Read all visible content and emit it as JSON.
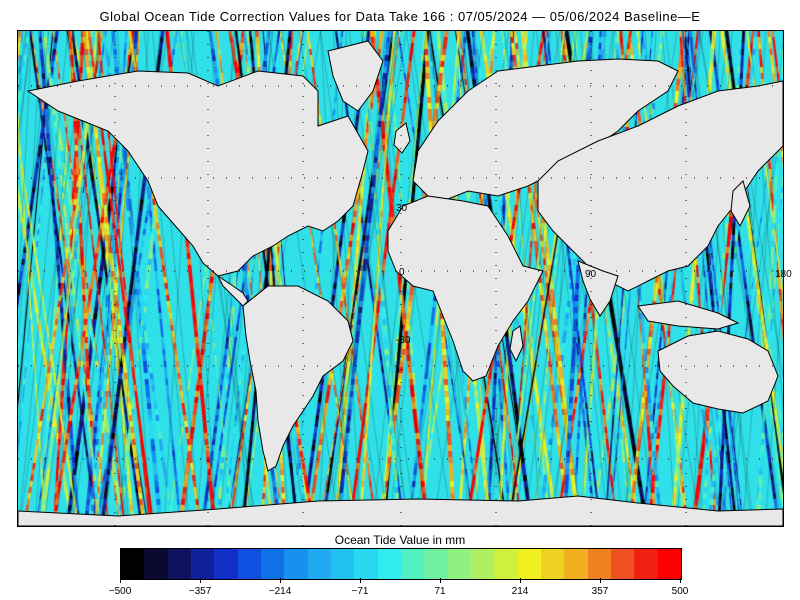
{
  "title": "Global Ocean Tide Correction Values for Data Take 166 : 07/05/2024 — 05/06/2024 Baseline—E",
  "map": {
    "ocean_type": "satellite ground-track swaths colored by value",
    "land_color": "#e8e8e8",
    "grid": "dotted lines every 30 degrees",
    "grid_labels": [
      {
        "text": "30",
        "lon": 0,
        "lat": 30
      },
      {
        "text": "0",
        "lon": 0,
        "lat": 0
      },
      {
        "text": "-30",
        "lon": 0,
        "lat": -30
      },
      {
        "text": "90",
        "lon": 90,
        "lat": 0
      },
      {
        "text": "180",
        "lon": 180,
        "lat": 0
      }
    ]
  },
  "colorbar": {
    "title": "Ocean Tide Value in mm",
    "min": -500,
    "max": 500,
    "ticks": [
      {
        "label": "−500",
        "value": -500
      },
      {
        "label": "−357",
        "value": -357
      },
      {
        "label": "−214",
        "value": -214
      },
      {
        "label": "−71",
        "value": -71
      },
      {
        "label": "71",
        "value": 71
      },
      {
        "label": "214",
        "value": 214
      },
      {
        "label": "357",
        "value": 357
      },
      {
        "label": "500",
        "value": 500
      }
    ],
    "colors": [
      "#000000",
      "#0a0a30",
      "#101060",
      "#10209a",
      "#1030c8",
      "#1050e0",
      "#1070e8",
      "#1890f0",
      "#20a8f0",
      "#20c0f0",
      "#28d8f0",
      "#30ecec",
      "#50f0c0",
      "#70f0a0",
      "#90f080",
      "#b0f060",
      "#d0f040",
      "#f0f020",
      "#f0d020",
      "#f0b020",
      "#f08020",
      "#f05020",
      "#f02010",
      "#ff0000"
    ]
  }
}
